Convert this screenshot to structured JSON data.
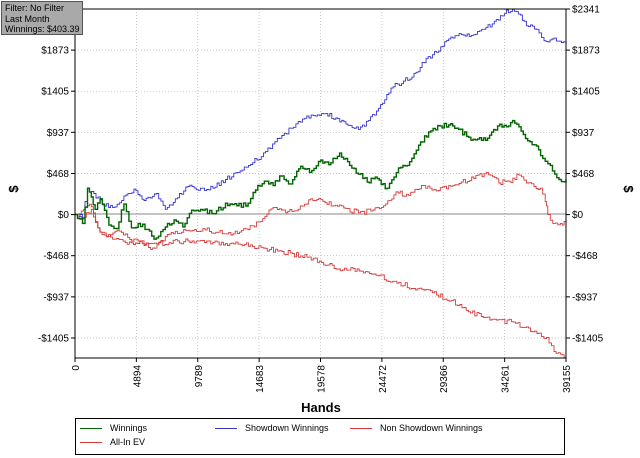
{
  "info_box": {
    "filter": "Filter: No Filter",
    "period": "Last Month",
    "winnings": "Winnings: $403.39"
  },
  "legend": [
    {
      "label": "Winnings",
      "color": "#006400"
    },
    {
      "label": "Showdown Winnings",
      "color": "#3535d0"
    },
    {
      "label": "Non Showdown Winnings",
      "color": "#d63b3b"
    },
    {
      "label": "All-In EV",
      "color": "#d63b3b"
    }
  ],
  "chart_data": {
    "type": "line",
    "xlabel": "Hands",
    "ylabel": "$",
    "xlim": [
      0,
      39155
    ],
    "ylim": [
      -1633,
      2341
    ],
    "x_ticks": [
      0,
      4894,
      9789,
      14683,
      19578,
      24472,
      29366,
      34261,
      39155
    ],
    "x_tick_labels": [
      "0",
      "4894",
      "9789",
      "14683",
      "19578",
      "24472",
      "29366",
      "34261",
      "39155"
    ],
    "y_ticks": [
      2341,
      1873,
      1405,
      937,
      468,
      0,
      -468,
      -937,
      -1405
    ],
    "y_tick_labels": [
      "$2341",
      "$1873",
      "$1405",
      "$937",
      "$468",
      "$0",
      "-$468",
      "-$937",
      "-$1405"
    ],
    "grid": true,
    "series": [
      {
        "name": "Winnings",
        "color": "#006400",
        "x": [
          0,
          600,
          1000,
          1300,
          1600,
          2000,
          2700,
          3300,
          3900,
          4500,
          5400,
          6300,
          7200,
          7900,
          8600,
          9300,
          10200,
          11100,
          12000,
          12900,
          13800,
          14400,
          15100,
          15800,
          16500,
          17200,
          18000,
          18700,
          19600,
          20400,
          21100,
          21900,
          22600,
          23300,
          24100,
          24900,
          25800,
          26500,
          27400,
          28200,
          29100,
          29800,
          30600,
          31400,
          32100,
          32900,
          33700,
          34400,
          34900,
          35400,
          36100,
          36800,
          37300,
          37900,
          38600,
          39155
        ],
        "y": [
          0,
          -100,
          300,
          200,
          60,
          180,
          -120,
          -160,
          120,
          -150,
          -110,
          -280,
          -140,
          -60,
          -140,
          50,
          50,
          10,
          130,
          100,
          130,
          280,
          380,
          330,
          440,
          350,
          550,
          480,
          620,
          590,
          700,
          560,
          460,
          370,
          410,
          300,
          530,
          560,
          790,
          940,
          1010,
          1020,
          970,
          880,
          860,
          870,
          1010,
          1000,
          1070,
          1000,
          840,
          780,
          640,
          560,
          400,
          403
        ]
      },
      {
        "name": "Showdown Winnings",
        "color": "#3535d0",
        "x": [
          0,
          600,
          1000,
          1500,
          2200,
          3000,
          3900,
          4700,
          5500,
          6500,
          7200,
          8000,
          9000,
          10000,
          11000,
          12000,
          13000,
          14000,
          15200,
          16500,
          17800,
          19000,
          20000,
          20800,
          21600,
          22600,
          23400,
          24200,
          25200,
          26200,
          27200,
          28000,
          29000,
          29800,
          30800,
          31600,
          32600,
          33600,
          34400,
          35200,
          36000,
          36800,
          37400,
          38200,
          38800,
          39155
        ],
        "y": [
          0,
          -40,
          300,
          240,
          110,
          80,
          210,
          290,
          160,
          240,
          60,
          180,
          320,
          300,
          300,
          400,
          480,
          570,
          720,
          900,
          1060,
          1130,
          1150,
          1100,
          1030,
          970,
          1070,
          1210,
          1440,
          1520,
          1620,
          1780,
          1860,
          2000,
          2050,
          2040,
          2110,
          2220,
          2330,
          2310,
          2150,
          2110,
          1980,
          2010,
          1960,
          2000
        ]
      },
      {
        "name": "Non Showdown Winnings",
        "color": "#d63b3b",
        "x": [
          0,
          500,
          1000,
          1300,
          1800,
          2500,
          3200,
          4200,
          5200,
          6200,
          7200,
          8000,
          9000,
          10200,
          11400,
          12600,
          13800,
          14800,
          15800,
          16800,
          17800,
          18800,
          19600,
          20600,
          21600,
          22600,
          23600,
          24600,
          25600,
          26600,
          27800,
          28800,
          29800,
          30800,
          31800,
          32800,
          33800,
          34600,
          35400,
          36000,
          36600,
          37100,
          37500,
          37700,
          38100,
          38700,
          39155
        ],
        "y": [
          0,
          40,
          100,
          90,
          -150,
          -250,
          -190,
          -260,
          -310,
          -380,
          -250,
          -190,
          -180,
          -160,
          -200,
          -220,
          -170,
          -80,
          80,
          20,
          60,
          180,
          170,
          100,
          70,
          20,
          40,
          100,
          260,
          220,
          330,
          270,
          330,
          370,
          410,
          480,
          360,
          380,
          450,
          360,
          320,
          300,
          150,
          0,
          -100,
          -100,
          -96
        ]
      },
      {
        "name": "All-In EV",
        "color": "#d63b3b",
        "x": [
          0,
          700,
          1300,
          2000,
          3000,
          4500,
          6000,
          7500,
          9000,
          10500,
          12000,
          13500,
          15000,
          16500,
          18000,
          19500,
          21000,
          22500,
          24000,
          25500,
          27000,
          28500,
          30000,
          31200,
          32400,
          33600,
          34800,
          36000,
          37000,
          37600,
          38200,
          38700,
          39155
        ],
        "y": [
          0,
          -30,
          60,
          -200,
          -280,
          -320,
          -330,
          -320,
          -300,
          -300,
          -330,
          -340,
          -380,
          -420,
          -470,
          -530,
          -620,
          -620,
          -690,
          -760,
          -840,
          -890,
          -980,
          -1090,
          -1160,
          -1200,
          -1220,
          -1280,
          -1350,
          -1400,
          -1560,
          -1590,
          -1610
        ]
      }
    ]
  }
}
